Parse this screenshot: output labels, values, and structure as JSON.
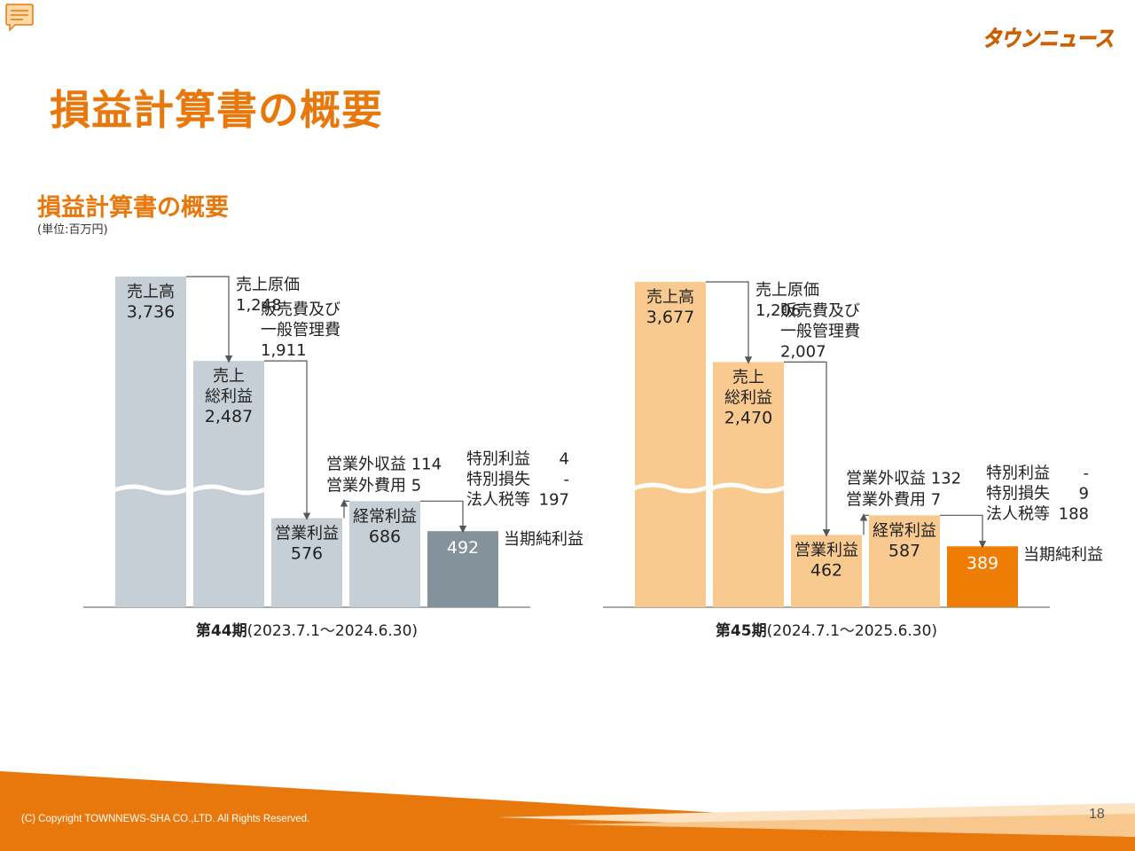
{
  "page": {
    "title": "損益計算書の概要",
    "section_title": "損益計算書の概要",
    "unit_note": "(単位:百万円)",
    "logo_text": "タウンニュース",
    "copyright": "(C) Copyright TOWNNEWS-SHA CO.,LTD. All Rights Reserved.",
    "page_number": "18",
    "accent_color": "#e8780c",
    "icons": [
      "comment-icon"
    ]
  },
  "chart_data": [
    {
      "type": "waterfall",
      "period_label": "第44期",
      "period_range": "(2023.7.1～2024.6.30)",
      "bar_colors": {
        "light": "#c7cfd6",
        "final": "#84939b"
      },
      "bars": [
        {
          "label_lines": [
            "売上高"
          ],
          "value": 3736,
          "value_text": "3,736"
        },
        {
          "label_lines": [
            "売上",
            "総利益"
          ],
          "value": 2487,
          "value_text": "2,487"
        },
        {
          "label_lines": [
            "営業利益"
          ],
          "value": 576,
          "value_text": "576"
        },
        {
          "label_lines": [
            "経常利益"
          ],
          "value": 686,
          "value_text": "686"
        },
        {
          "label_lines": [
            "当期純利益"
          ],
          "value": 492,
          "value_text": "492"
        }
      ],
      "annotations": {
        "cost_of_sales": {
          "label": "売上原価",
          "value_text": "1,248"
        },
        "sga": {
          "label_lines": [
            "販売費及び",
            "一般管理費"
          ],
          "value_text": "1,911"
        },
        "non_operating_income": {
          "label": "営業外収益",
          "value_text": "114"
        },
        "non_operating_expenses": {
          "label": "営業外費用",
          "value_text": "5"
        },
        "extraordinary_income": {
          "label": "特別利益",
          "value_text": "4"
        },
        "extraordinary_loss": {
          "label": "特別損失",
          "value_text": "-"
        },
        "income_taxes": {
          "label": "法人税等",
          "value_text": "197"
        }
      }
    },
    {
      "type": "waterfall",
      "period_label": "第45期",
      "period_range": "(2024.7.1～2025.6.30)",
      "bar_colors": {
        "light": "#f8ca90",
        "final": "#ee7d06"
      },
      "bars": [
        {
          "label_lines": [
            "売上高"
          ],
          "value": 3677,
          "value_text": "3,677"
        },
        {
          "label_lines": [
            "売上",
            "総利益"
          ],
          "value": 2470,
          "value_text": "2,470"
        },
        {
          "label_lines": [
            "営業利益"
          ],
          "value": 462,
          "value_text": "462"
        },
        {
          "label_lines": [
            "経常利益"
          ],
          "value": 587,
          "value_text": "587"
        },
        {
          "label_lines": [
            "当期純利益"
          ],
          "value": 389,
          "value_text": "389"
        }
      ],
      "annotations": {
        "cost_of_sales": {
          "label": "売上原価",
          "value_text": "1,206"
        },
        "sga": {
          "label_lines": [
            "販売費及び",
            "一般管理費"
          ],
          "value_text": "2,007"
        },
        "non_operating_income": {
          "label": "営業外収益",
          "value_text": "132"
        },
        "non_operating_expenses": {
          "label": "営業外費用",
          "value_text": "7"
        },
        "extraordinary_income": {
          "label": "特別利益",
          "value_text": "-"
        },
        "extraordinary_loss": {
          "label": "特別損失",
          "value_text": "9"
        },
        "income_taxes": {
          "label": "法人税等",
          "value_text": "188"
        }
      }
    }
  ]
}
